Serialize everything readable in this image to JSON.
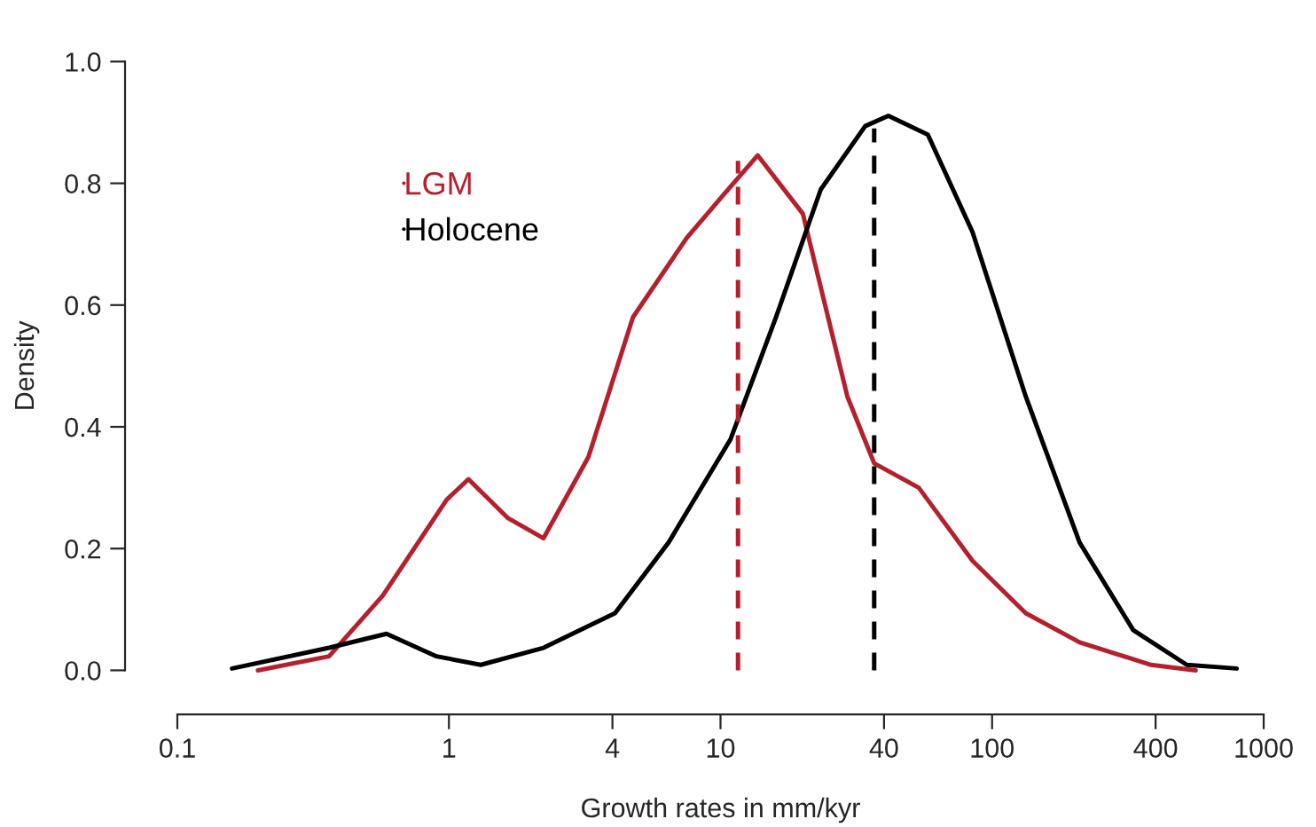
{
  "chart_data": {
    "type": "line",
    "xlabel": "Growth rates in mm/kyr",
    "ylabel": "Density",
    "log": "x",
    "xlim": [
      0.1,
      1000
    ],
    "ylim": [
      0,
      1
    ],
    "xticks": [
      0.1,
      1,
      4,
      10,
      40,
      100,
      400,
      1000
    ],
    "yticks": [
      {
        "value": 0,
        "label": "0.0"
      },
      {
        "value": 0.2,
        "label": "0.2"
      },
      {
        "value": 0.4,
        "label": "0.4"
      },
      {
        "value": 0.6,
        "label": "0.6"
      },
      {
        "value": 0.8,
        "label": "0.8"
      },
      {
        "value": 1,
        "label": "1.0"
      }
    ],
    "grid": false,
    "legend": "top left",
    "series": [
      {
        "name": "LGM",
        "color": "#b5202e",
        "line_style": "solid",
        "x": [
          0.198,
          0.362,
          0.571,
          0.98,
          1.18,
          1.65,
          2.23,
          3.26,
          4.76,
          7.5,
          10.2,
          13.7,
          20.1,
          29.3,
          36.8,
          53.7,
          84.7,
          133,
          210,
          385,
          562
        ],
        "values": [
          0,
          0.023,
          0.123,
          0.28,
          0.314,
          0.25,
          0.217,
          0.35,
          0.58,
          0.71,
          0.78,
          0.846,
          0.75,
          0.45,
          0.34,
          0.3,
          0.18,
          0.094,
          0.046,
          0.009,
          0
        ]
      },
      {
        "name": "Holocene",
        "color": "#000000",
        "line_style": "solid",
        "x": [
          0.159,
          0.362,
          0.589,
          0.9,
          1.31,
          2.23,
          4.09,
          6.44,
          10.9,
          16,
          23.4,
          34.1,
          41.5,
          58,
          84.7,
          133,
          210,
          331,
          521,
          796
        ],
        "values": [
          0.003,
          0.037,
          0.06,
          0.023,
          0.009,
          0.037,
          0.094,
          0.21,
          0.38,
          0.58,
          0.79,
          0.894,
          0.911,
          0.88,
          0.72,
          0.45,
          0.21,
          0.066,
          0.009,
          0.003
        ]
      },
      {
        "color": "#b5202e",
        "line_style": "dashed",
        "x": [
          11.6,
          11.6
        ],
        "values": [
          0,
          0.837
        ]
      },
      {
        "color": "#000000",
        "line_style": "dashed",
        "x": [
          36.8,
          36.8
        ],
        "values": [
          0,
          0.89
        ]
      }
    ]
  }
}
